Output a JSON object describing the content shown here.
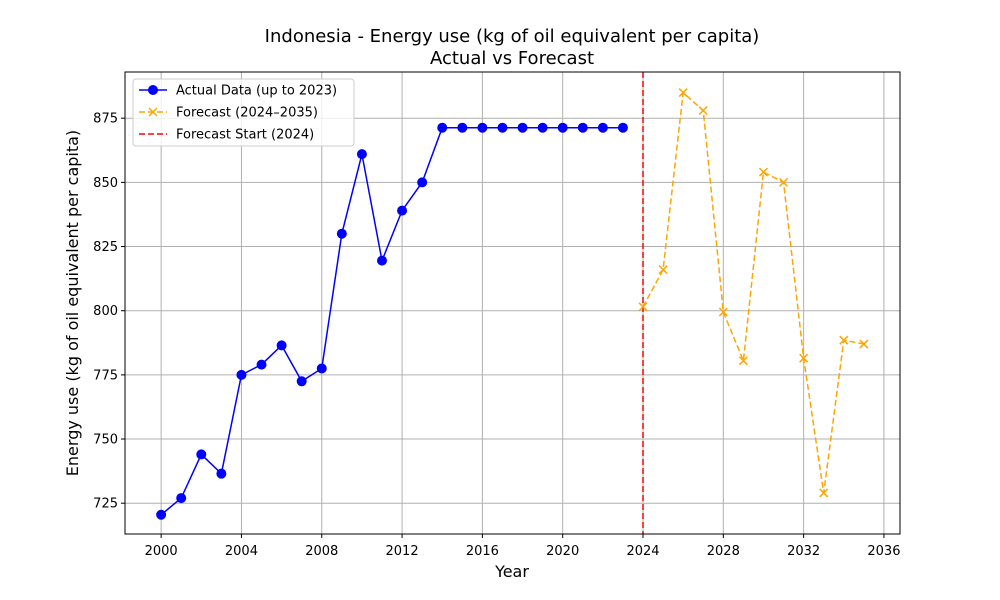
{
  "chart_data": {
    "type": "line",
    "title": "Indonesia - Energy use (kg of oil equivalent per capita)",
    "subtitle": "Actual vs Forecast",
    "xlabel": "Year",
    "ylabel": "Energy use (kg of oil equivalent per capita)",
    "xlim": [
      1998.2,
      2036.8
    ],
    "ylim": [
      713,
      893
    ],
    "xticks": [
      2000,
      2004,
      2008,
      2012,
      2016,
      2020,
      2024,
      2028,
      2032,
      2036
    ],
    "yticks": [
      725,
      750,
      775,
      800,
      825,
      850,
      875
    ],
    "grid": true,
    "legend_position": "top-left",
    "series": [
      {
        "name": "Actual Data (up to 2023)",
        "color": "#0000ff",
        "line_style": "solid",
        "marker": "circle",
        "x": [
          2000,
          2001,
          2002,
          2003,
          2004,
          2005,
          2006,
          2007,
          2008,
          2009,
          2010,
          2011,
          2012,
          2013,
          2014,
          2015,
          2016,
          2017,
          2018,
          2019,
          2020,
          2021,
          2022,
          2023
        ],
        "y": [
          720.5,
          727,
          744,
          736.5,
          775,
          779,
          786.5,
          772.5,
          777.5,
          830,
          861,
          819.5,
          839,
          850,
          871.3,
          871.3,
          871.3,
          871.3,
          871.3,
          871.3,
          871.3,
          871.3,
          871.3,
          871.3
        ]
      },
      {
        "name": "Forecast (2024–2035)",
        "color": "#ffa500",
        "line_style": "dashed",
        "marker": "x",
        "x": [
          2024,
          2025,
          2026,
          2027,
          2028,
          2029,
          2030,
          2031,
          2032,
          2033,
          2034,
          2035
        ],
        "y": [
          801.5,
          816,
          885,
          878,
          799.5,
          780.5,
          854,
          850,
          781.5,
          729,
          788.5,
          787
        ]
      }
    ],
    "vlines": [
      {
        "name": "Forecast Start (2024)",
        "x": 2024,
        "color": "#ff0000",
        "line_style": "dashed"
      }
    ]
  }
}
